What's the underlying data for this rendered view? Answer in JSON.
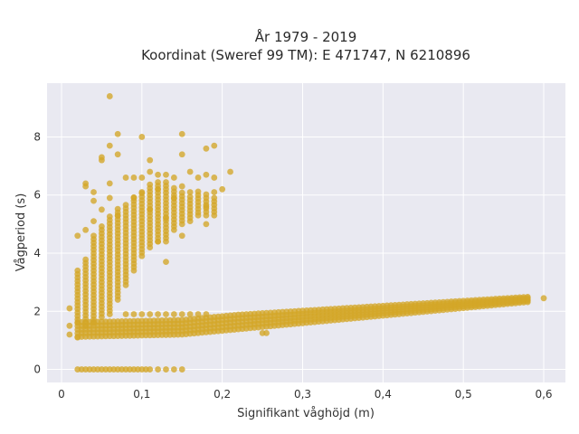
{
  "chart_data": {
    "type": "scatter",
    "title": "År 1979 - 2019",
    "subtitle": "Koordinat (Sweref 99 TM): E 471747, N 6210896",
    "xlabel": "Signifikant våghöjd (m)",
    "ylabel": "Vågperiod (s)",
    "xlim": [
      -0.018,
      0.627
    ],
    "ylim": [
      -0.45,
      9.85
    ],
    "x_ticks": [
      0,
      0.1,
      0.2,
      0.3,
      0.4,
      0.5,
      0.6
    ],
    "x_tick_labels": [
      "0",
      "0,1",
      "0,2",
      "0,3",
      "0,4",
      "0,5",
      "0,6"
    ],
    "y_ticks": [
      0,
      2,
      4,
      6,
      8
    ],
    "y_tick_labels": [
      "0",
      "2",
      "4",
      "6",
      "8"
    ],
    "grid": true,
    "background": "#e9e9f1",
    "marker_color": "#d4a628",
    "series": [
      {
        "points": [
          [
            0.02,
            0
          ],
          [
            0.025,
            0
          ],
          [
            0.03,
            0
          ],
          [
            0.035,
            0
          ],
          [
            0.04,
            0
          ],
          [
            0.045,
            0
          ],
          [
            0.05,
            0
          ],
          [
            0.055,
            0
          ],
          [
            0.06,
            0
          ],
          [
            0.065,
            0
          ],
          [
            0.07,
            0
          ],
          [
            0.075,
            0
          ],
          [
            0.08,
            0
          ],
          [
            0.085,
            0
          ],
          [
            0.09,
            0
          ],
          [
            0.095,
            0
          ],
          [
            0.1,
            0
          ],
          [
            0.105,
            0
          ],
          [
            0.11,
            0
          ],
          [
            0.12,
            0
          ],
          [
            0.13,
            0
          ],
          [
            0.14,
            0
          ],
          [
            0.15,
            0
          ],
          [
            0.01,
            1.2
          ],
          [
            0.01,
            1.5
          ],
          [
            0.01,
            2.1
          ],
          [
            0.02,
            1.1
          ],
          [
            0.02,
            4.6
          ],
          [
            0.03,
            6.4
          ],
          [
            0.03,
            6.3
          ],
          [
            0.03,
            4.8
          ],
          [
            0.04,
            6.1
          ],
          [
            0.04,
            5.8
          ],
          [
            0.04,
            5.1
          ],
          [
            0.05,
            7.2
          ],
          [
            0.05,
            7.3
          ],
          [
            0.05,
            5.5
          ],
          [
            0.06,
            9.4
          ],
          [
            0.06,
            7.7
          ],
          [
            0.06,
            6.4
          ],
          [
            0.06,
            5.9
          ],
          [
            0.07,
            8.1
          ],
          [
            0.07,
            7.4
          ],
          [
            0.07,
            5.3
          ],
          [
            0.08,
            6.6
          ],
          [
            0.09,
            6.6
          ],
          [
            0.09,
            5.9
          ],
          [
            0.1,
            8.0
          ],
          [
            0.1,
            6.6
          ],
          [
            0.1,
            6.1
          ],
          [
            0.11,
            7.2
          ],
          [
            0.11,
            6.8
          ],
          [
            0.11,
            5.5
          ],
          [
            0.12,
            6.7
          ],
          [
            0.12,
            6.2
          ],
          [
            0.12,
            4.4
          ],
          [
            0.13,
            6.7
          ],
          [
            0.13,
            5.2
          ],
          [
            0.13,
            3.7
          ],
          [
            0.14,
            6.6
          ],
          [
            0.14,
            5.9
          ],
          [
            0.15,
            8.1
          ],
          [
            0.15,
            7.4
          ],
          [
            0.15,
            6.3
          ],
          [
            0.15,
            4.6
          ],
          [
            0.16,
            6.8
          ],
          [
            0.16,
            6.1
          ],
          [
            0.17,
            6.6
          ],
          [
            0.17,
            5.3
          ],
          [
            0.18,
            7.6
          ],
          [
            0.18,
            6.7
          ],
          [
            0.18,
            5.6
          ],
          [
            0.18,
            5.0
          ],
          [
            0.19,
            7.7
          ],
          [
            0.19,
            6.6
          ],
          [
            0.19,
            6.1
          ],
          [
            0.2,
            6.2
          ],
          [
            0.21,
            6.8
          ],
          [
            0.08,
            1.9
          ],
          [
            0.09,
            1.9
          ],
          [
            0.1,
            1.9
          ],
          [
            0.11,
            1.9
          ],
          [
            0.12,
            1.9
          ],
          [
            0.13,
            1.9
          ],
          [
            0.14,
            1.9
          ],
          [
            0.15,
            1.9
          ],
          [
            0.16,
            1.9
          ],
          [
            0.17,
            1.9
          ],
          [
            0.18,
            1.9
          ],
          [
            0.25,
            1.25
          ],
          [
            0.255,
            1.25
          ],
          [
            0.6,
            2.45
          ]
        ]
      }
    ]
  }
}
